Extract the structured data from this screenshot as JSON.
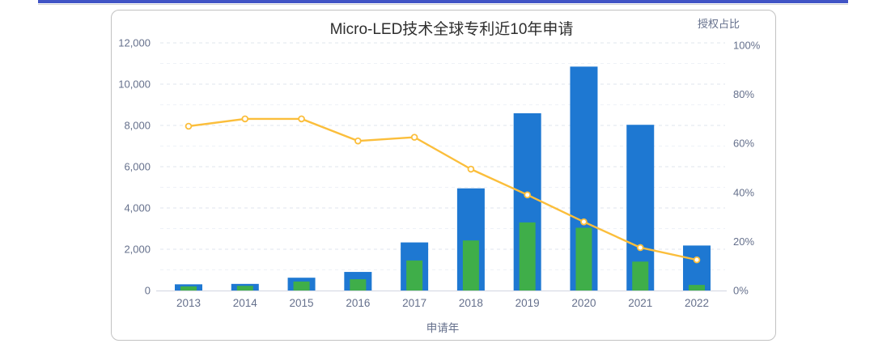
{
  "page": {
    "top_divider_color": "#4154c5"
  },
  "chart_data": {
    "type": "bar",
    "subtype": "stacked-bar-with-line",
    "title": "Micro-LED技术全球专利近10年申请",
    "x_axis_label": "申请年",
    "right_axis_label": "授权占比",
    "categories": [
      "2013",
      "2014",
      "2015",
      "2016",
      "2017",
      "2018",
      "2019",
      "2020",
      "2021",
      "2022"
    ],
    "series": {
      "applications_bar": {
        "color": "#1e78d2",
        "values": [
          300,
          320,
          620,
          900,
          2330,
          4950,
          8590,
          10850,
          8030,
          2180
        ]
      },
      "granted_bar": {
        "color": "#3fae49",
        "values": [
          200,
          225,
          435,
          545,
          1455,
          2425,
          3300,
          3040,
          1400,
          270
        ]
      },
      "grant_ratio_line": {
        "color": "#fbbe3b",
        "marker_fill": "#ffffff",
        "values_percent": [
          67,
          70,
          70,
          61,
          62.5,
          49.5,
          39,
          28,
          17.5,
          12.5
        ]
      }
    },
    "left_axis": {
      "min": 0,
      "max": 12000,
      "step": 2000,
      "tick_labels": [
        "0",
        "2,000",
        "4,000",
        "6,000",
        "8,000",
        "10,000",
        "12,000"
      ]
    },
    "right_axis": {
      "min": 0,
      "max": 100,
      "step": 20,
      "tick_labels": [
        "0%",
        "20%",
        "40%",
        "60%",
        "80%",
        "100%"
      ]
    },
    "grid": {
      "major_line_color": "#dfe4ed",
      "minor_line_color": "#eef1f7",
      "axis_line_color": "#d8dce4",
      "label_color": "#65708c",
      "grid_dashed": true,
      "legend": "none"
    }
  }
}
